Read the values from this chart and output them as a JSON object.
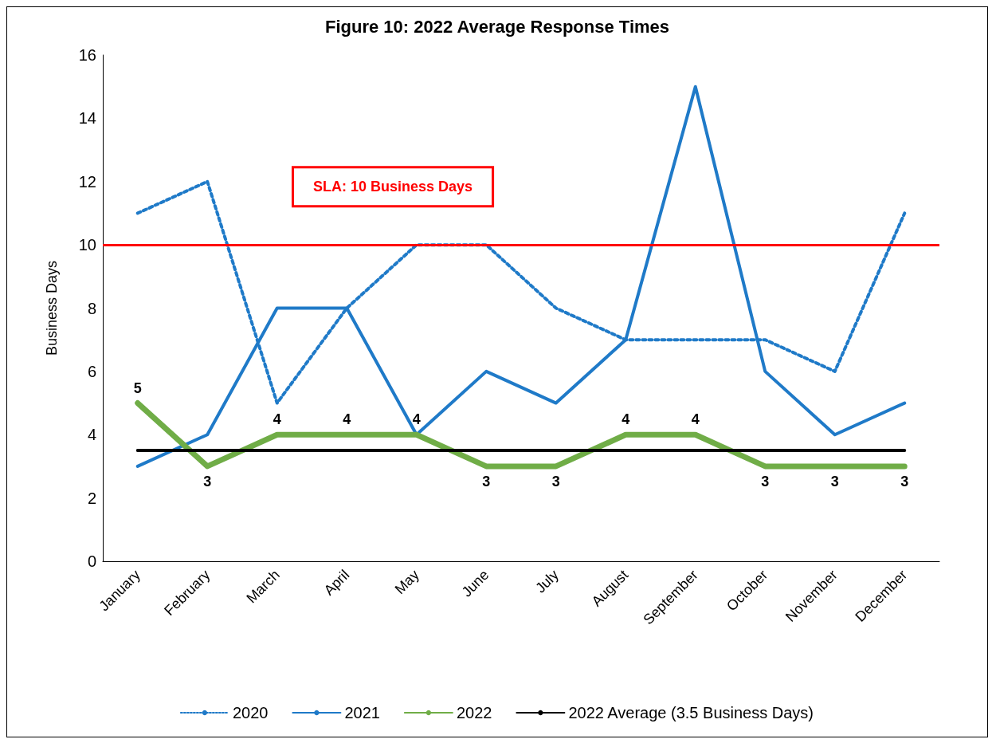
{
  "chart_data": {
    "type": "line",
    "title": "Figure 10: 2022 Average Response Times",
    "ylabel": "Business Days",
    "categories": [
      "January",
      "February",
      "March",
      "April",
      "May",
      "June",
      "July",
      "August",
      "September",
      "October",
      "November",
      "December"
    ],
    "series": [
      {
        "name": "2020",
        "color": "#1f7ac8",
        "line_style": "dotted",
        "values": [
          11,
          12,
          5,
          8,
          10,
          10,
          8,
          7,
          7,
          7,
          6,
          11
        ]
      },
      {
        "name": "2021",
        "color": "#1f7ac8",
        "line_style": "solid",
        "values": [
          3,
          4,
          8,
          8,
          4,
          6,
          5,
          7,
          15,
          6,
          4,
          5
        ]
      },
      {
        "name": "2022",
        "color": "#70ad47",
        "line_style": "solid",
        "values": [
          5,
          3,
          4,
          4,
          4,
          3,
          3,
          4,
          4,
          3,
          3,
          3
        ],
        "value_labels": [
          "5",
          "3",
          "4",
          "4",
          "4",
          "3",
          "3",
          "4",
          "4",
          "3",
          "3",
          "3"
        ]
      },
      {
        "name": "2022 Average (3.5 Business Days)",
        "color": "#000000",
        "line_style": "solid",
        "values": [
          3.5,
          3.5,
          3.5,
          3.5,
          3.5,
          3.5,
          3.5,
          3.5,
          3.5,
          3.5,
          3.5,
          3.5
        ]
      }
    ],
    "ref_lines": [
      {
        "axis": "y",
        "value": 10,
        "label": "SLA: 10 Business Days",
        "color": "#ff0000"
      }
    ],
    "ylim": [
      0,
      16
    ],
    "yticks": [
      0,
      2,
      4,
      6,
      8,
      10,
      12,
      14,
      16
    ],
    "grid": false,
    "legend": "bottom",
    "marker": "none"
  }
}
